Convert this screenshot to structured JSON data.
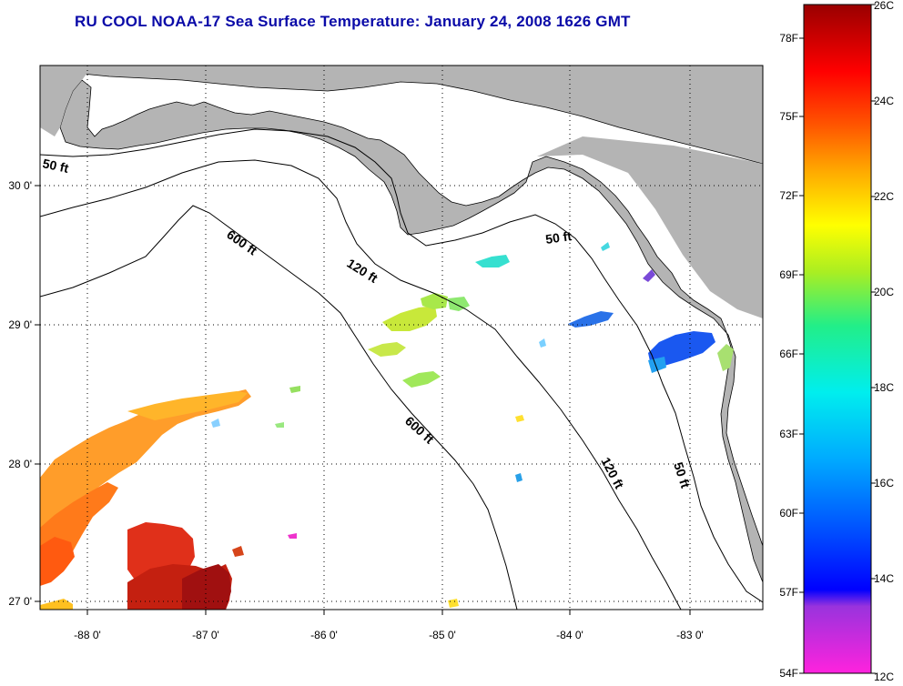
{
  "title": "RU COOL  NOAA-17  Sea Surface Temperature:  January 24, 2008 1626 GMT",
  "axes": {
    "lon_ticks": [
      "-88 0'",
      "-87 0'",
      "-86 0'",
      "-85 0'",
      "-84 0'",
      "-83 0'"
    ],
    "lat_ticks": [
      "30 0'",
      "29 0'",
      "28 0'",
      "27 0'"
    ]
  },
  "depth_labels": [
    "50 ft",
    "600 ft",
    "120 ft",
    "50 ft",
    "600 ft",
    "120 ft",
    "50 ft"
  ],
  "colorbar": {
    "fahrenheit": [
      "78F",
      "75F",
      "72F",
      "69F",
      "66F",
      "63F",
      "60F",
      "57F",
      "54F"
    ],
    "celsius": [
      "26C",
      "24C",
      "22C",
      "20C",
      "18C",
      "16C",
      "14C",
      "12C"
    ]
  },
  "colors": {
    "title": "#0a0aa8",
    "land": "#b4b4b4",
    "water": "#ffffff"
  }
}
